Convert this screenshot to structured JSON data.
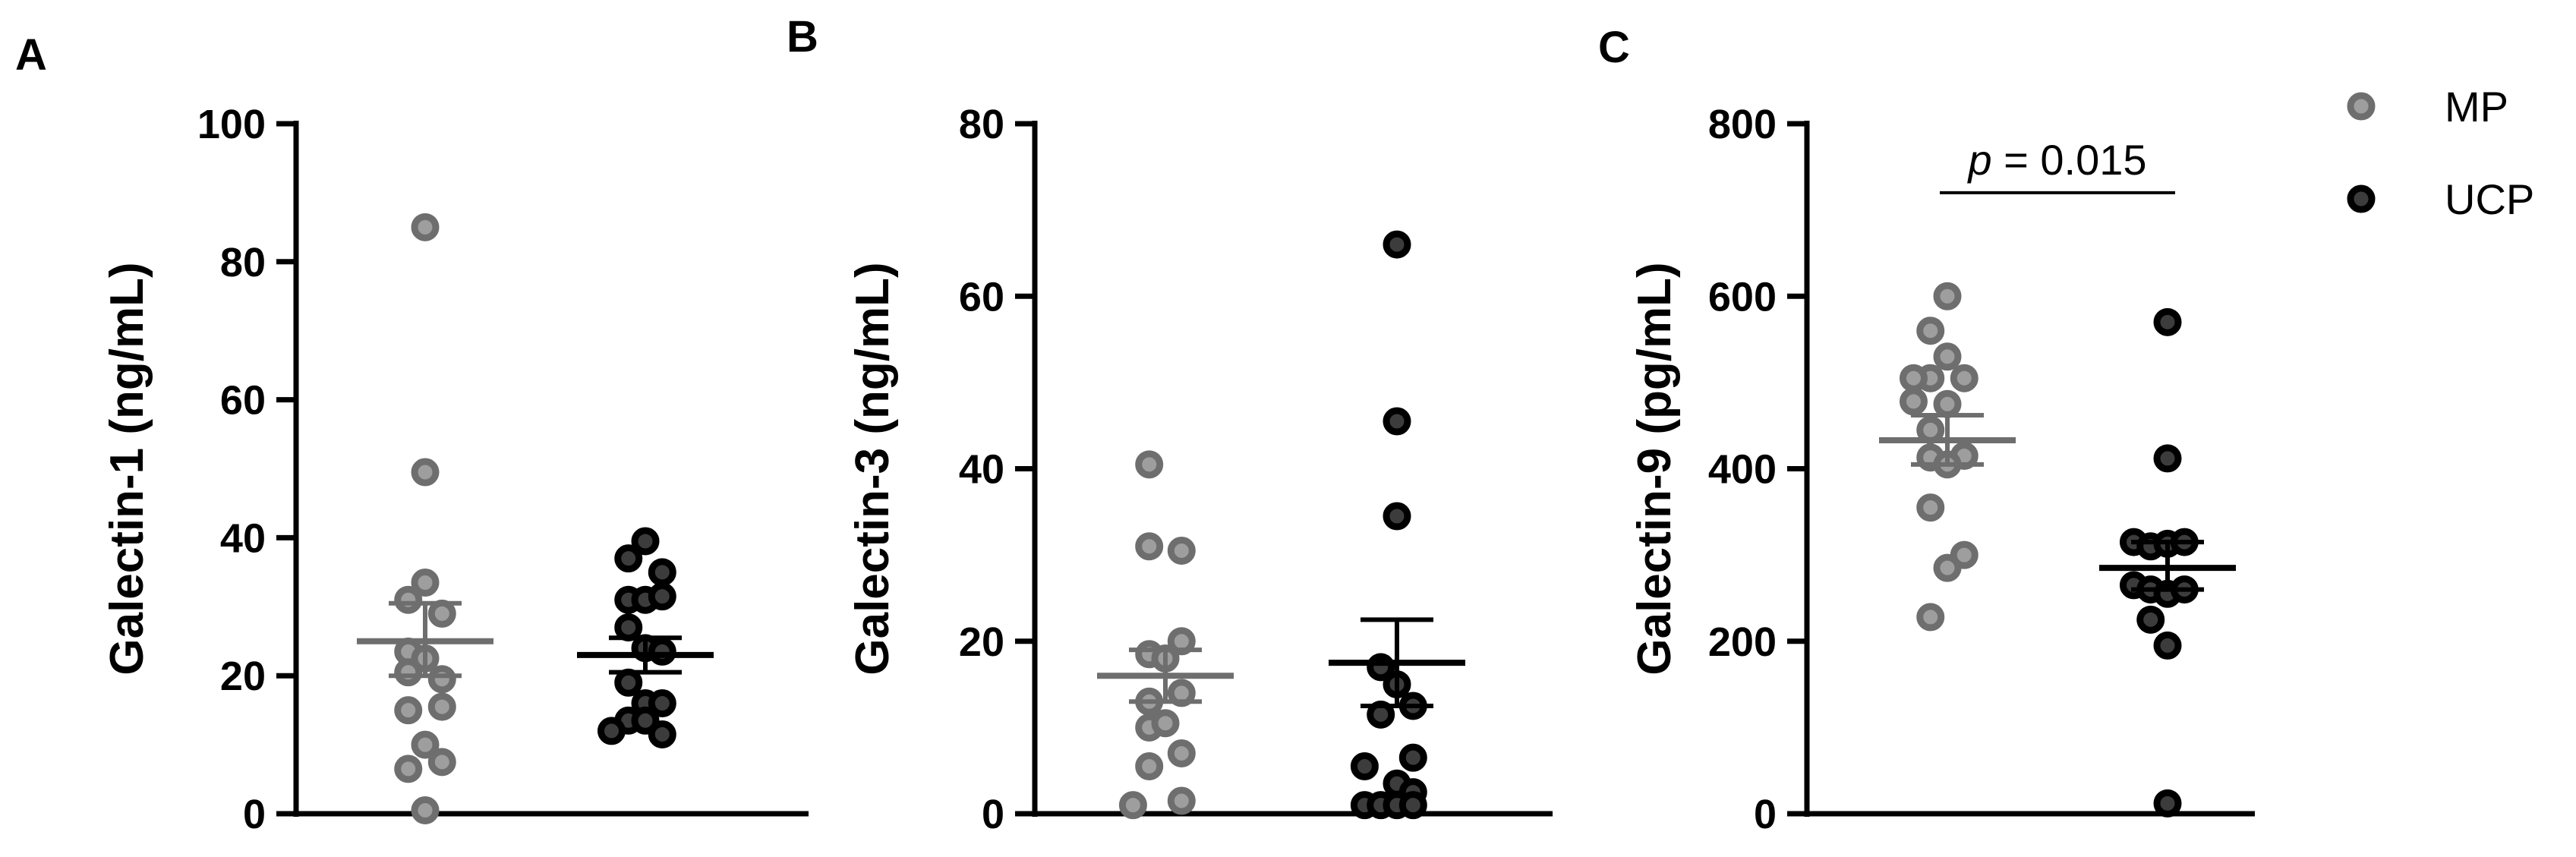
{
  "figure": {
    "panels": [
      "A",
      "B",
      "C"
    ]
  },
  "legend": {
    "position": "top-right",
    "items": [
      {
        "label": "MP",
        "fill": "#9e9e9e",
        "stroke": "#6e6e6e"
      },
      {
        "label": "UCP",
        "fill": "#3c3c3c",
        "stroke": "#000000"
      }
    ]
  },
  "colors": {
    "axis": "#000000",
    "mp_mean_line": "#6e6e6e",
    "ucp_mean_line": "#000000"
  },
  "chart_data": [
    {
      "type": "scatter",
      "panel": "A",
      "title": "",
      "xlabel": "",
      "ylabel": "Galectin-1 (ng/mL)",
      "ylim": [
        0,
        100
      ],
      "yticks": [
        "0",
        "20",
        "40",
        "60",
        "80",
        "100"
      ],
      "grid": false,
      "groups": [
        {
          "name": "MP",
          "mean": 25,
          "sem_low": 20,
          "sem_high": 30.5,
          "points": [
            {
              "x": 0.0,
              "y": 85
            },
            {
              "x": 0.0,
              "y": 49.5
            },
            {
              "x": 0.0,
              "y": 33.5
            },
            {
              "x": -0.22,
              "y": 31
            },
            {
              "x": 0.22,
              "y": 29
            },
            {
              "x": -0.22,
              "y": 23.5
            },
            {
              "x": 0.0,
              "y": 22.5
            },
            {
              "x": -0.22,
              "y": 20.5
            },
            {
              "x": 0.22,
              "y": 19.5
            },
            {
              "x": 0.22,
              "y": 15.5
            },
            {
              "x": -0.22,
              "y": 15
            },
            {
              "x": 0.0,
              "y": 10
            },
            {
              "x": -0.22,
              "y": 6.5
            },
            {
              "x": 0.22,
              "y": 7.5
            },
            {
              "x": 0.0,
              "y": 0.5
            }
          ]
        },
        {
          "name": "UCP",
          "mean": 23,
          "sem_low": 20.5,
          "sem_high": 25.5,
          "points": [
            {
              "x": 0.0,
              "y": 39.5
            },
            {
              "x": -0.22,
              "y": 37
            },
            {
              "x": 0.22,
              "y": 35
            },
            {
              "x": -0.22,
              "y": 31
            },
            {
              "x": 0.0,
              "y": 31
            },
            {
              "x": 0.22,
              "y": 31.5
            },
            {
              "x": -0.22,
              "y": 27
            },
            {
              "x": 0.0,
              "y": 24
            },
            {
              "x": 0.22,
              "y": 23.5
            },
            {
              "x": -0.22,
              "y": 19
            },
            {
              "x": 0.0,
              "y": 16
            },
            {
              "x": 0.22,
              "y": 16
            },
            {
              "x": -0.22,
              "y": 13.5
            },
            {
              "x": 0.0,
              "y": 13.5
            },
            {
              "x": 0.22,
              "y": 11.5
            },
            {
              "x": -0.44,
              "y": 12
            }
          ]
        }
      ]
    },
    {
      "type": "scatter",
      "panel": "B",
      "title": "",
      "xlabel": "",
      "ylabel": "Galectin-3 (ng/mL)",
      "ylim": [
        0,
        80
      ],
      "yticks": [
        "0",
        "20",
        "40",
        "60",
        "80"
      ],
      "grid": false,
      "groups": [
        {
          "name": "MP",
          "mean": 16,
          "sem_low": 13,
          "sem_high": 19,
          "points": [
            {
              "x": -0.22,
              "y": 40.5
            },
            {
              "x": -0.22,
              "y": 31
            },
            {
              "x": 0.22,
              "y": 30.5
            },
            {
              "x": 0.22,
              "y": 20
            },
            {
              "x": -0.22,
              "y": 18.5
            },
            {
              "x": 0.0,
              "y": 18
            },
            {
              "x": -0.22,
              "y": 13
            },
            {
              "x": 0.22,
              "y": 14
            },
            {
              "x": -0.22,
              "y": 10
            },
            {
              "x": 0.0,
              "y": 10.5
            },
            {
              "x": 0.22,
              "y": 7
            },
            {
              "x": -0.22,
              "y": 5.5
            },
            {
              "x": 0.22,
              "y": 1.5
            },
            {
              "x": -0.44,
              "y": 1
            }
          ]
        },
        {
          "name": "UCP",
          "mean": 17.5,
          "sem_low": 12.5,
          "sem_high": 22.5,
          "points": [
            {
              "x": 0.0,
              "y": 66
            },
            {
              "x": 0.0,
              "y": 45.5
            },
            {
              "x": 0.0,
              "y": 34.5
            },
            {
              "x": -0.22,
              "y": 17
            },
            {
              "x": 0.0,
              "y": 15
            },
            {
              "x": 0.22,
              "y": 12.5
            },
            {
              "x": -0.22,
              "y": 11.5
            },
            {
              "x": 0.22,
              "y": 6.5
            },
            {
              "x": -0.44,
              "y": 5.5
            },
            {
              "x": 0.0,
              "y": 3.5
            },
            {
              "x": 0.22,
              "y": 2.5
            },
            {
              "x": -0.44,
              "y": 1
            },
            {
              "x": -0.22,
              "y": 1
            },
            {
              "x": 0.0,
              "y": 1
            },
            {
              "x": 0.22,
              "y": 1
            }
          ]
        }
      ]
    },
    {
      "type": "scatter",
      "panel": "C",
      "title": "",
      "xlabel": "",
      "ylabel": "Galectin-9 (pg/mL)",
      "ylim": [
        0,
        800
      ],
      "yticks": [
        "0",
        "200",
        "400",
        "600",
        "800"
      ],
      "grid": false,
      "annotation": {
        "p_symbol": "p",
        "p_value_text": " = 0.015",
        "y": 720
      },
      "groups": [
        {
          "name": "MP",
          "mean": 433,
          "sem_low": 405,
          "sem_high": 462,
          "points": [
            {
              "x": 0.0,
              "y": 600
            },
            {
              "x": -0.22,
              "y": 560
            },
            {
              "x": 0.0,
              "y": 530
            },
            {
              "x": -0.22,
              "y": 505
            },
            {
              "x": 0.22,
              "y": 505
            },
            {
              "x": -0.44,
              "y": 505
            },
            {
              "x": -0.44,
              "y": 478
            },
            {
              "x": 0.0,
              "y": 475
            },
            {
              "x": -0.22,
              "y": 445
            },
            {
              "x": 0.22,
              "y": 415
            },
            {
              "x": -0.22,
              "y": 413
            },
            {
              "x": 0.0,
              "y": 405
            },
            {
              "x": -0.22,
              "y": 355
            },
            {
              "x": 0.22,
              "y": 300
            },
            {
              "x": 0.0,
              "y": 285
            },
            {
              "x": -0.22,
              "y": 228
            }
          ]
        },
        {
          "name": "UCP",
          "mean": 285,
          "sem_low": 260,
          "sem_high": 315,
          "points": [
            {
              "x": 0.0,
              "y": 570
            },
            {
              "x": 0.0,
              "y": 412
            },
            {
              "x": -0.44,
              "y": 315
            },
            {
              "x": -0.22,
              "y": 310
            },
            {
              "x": 0.0,
              "y": 313
            },
            {
              "x": 0.22,
              "y": 315
            },
            {
              "x": -0.44,
              "y": 265
            },
            {
              "x": -0.22,
              "y": 260
            },
            {
              "x": 0.0,
              "y": 255
            },
            {
              "x": 0.22,
              "y": 260
            },
            {
              "x": -0.22,
              "y": 225
            },
            {
              "x": 0.0,
              "y": 195
            },
            {
              "x": 0.0,
              "y": 12
            }
          ]
        }
      ]
    }
  ]
}
